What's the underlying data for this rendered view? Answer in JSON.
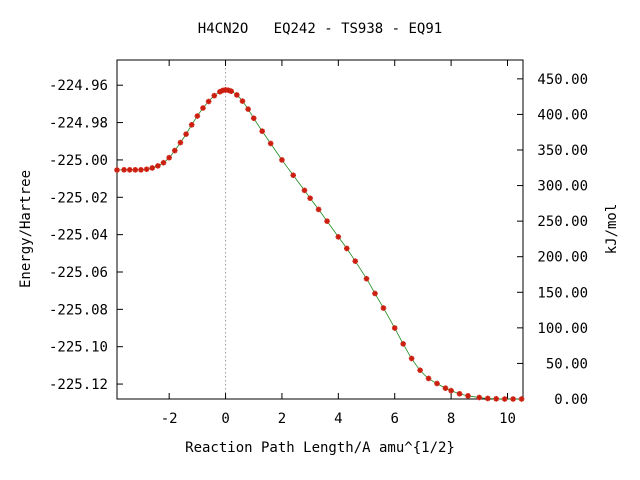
{
  "chart_data": {
    "type": "line",
    "title": "H4CN2O   EQ242 - TS938 - EQ91",
    "xlabel": "Reaction Path Length/A amu^{1/2}",
    "ylabel_left": "Energy/Hartree",
    "ylabel_right": "kJ/mol",
    "xlim": [
      -3.85,
      10.55
    ],
    "ylim_left": [
      -225.128,
      -224.9465
    ],
    "ylim_right_kjmol": [
      0,
      476.5
    ],
    "x_ticks": [
      -2,
      0,
      2,
      4,
      6,
      8,
      10
    ],
    "x_tick_labels": [
      "-2",
      "0",
      "2",
      "4",
      "6",
      "8",
      "10"
    ],
    "y_left_ticks": [
      -224.96,
      -224.98,
      -225.0,
      -225.02,
      -225.04,
      -225.06,
      -225.08,
      -225.1,
      -225.12
    ],
    "y_left_tick_labels": [
      "-224.96",
      "-224.98",
      "-225.00",
      "-225.02",
      "-225.04",
      "-225.06",
      "-225.08",
      "-225.10",
      "-225.12"
    ],
    "y_right_ticks": [
      0,
      50,
      100,
      150,
      200,
      250,
      300,
      350,
      400,
      450
    ],
    "y_right_tick_labels": [
      "0.00",
      "50.00",
      "100.00",
      "150.00",
      "200.00",
      "250.00",
      "300.00",
      "350.00",
      "400.00",
      "450.00"
    ],
    "ts_marker_x": 0,
    "series": [
      {
        "x": [
          -3.85,
          -3.6,
          -3.4,
          -3.2,
          -3.0,
          -2.8,
          -2.6,
          -2.4,
          -2.2,
          -2.0,
          -1.8,
          -1.6,
          -1.4,
          -1.2,
          -1.0,
          -0.8,
          -0.6,
          -0.4,
          -0.2,
          -0.1,
          0.0,
          0.1,
          0.2,
          0.4,
          0.6,
          0.8,
          1.0,
          1.3,
          1.6,
          2.0,
          2.4,
          2.8,
          3.0,
          3.3,
          3.6,
          4.0,
          4.3,
          4.6,
          5.0,
          5.3,
          5.6,
          6.0,
          6.3,
          6.6,
          6.9,
          7.2,
          7.5,
          7.8,
          8.0,
          8.3,
          8.6,
          9.0,
          9.3,
          9.6,
          9.9,
          10.2,
          10.5
        ],
        "y": [
          -225.0054,
          -225.0053,
          -225.0053,
          -225.0053,
          -225.0053,
          -225.005,
          -225.0043,
          -225.0032,
          -225.0015,
          -224.9988,
          -224.995,
          -224.9907,
          -224.9862,
          -224.9812,
          -224.9765,
          -224.9722,
          -224.9687,
          -224.9656,
          -224.9635,
          -224.9628,
          -224.9625,
          -224.9627,
          -224.9632,
          -224.9652,
          -224.9685,
          -224.9728,
          -224.9777,
          -224.9846,
          -224.9912,
          -225.0,
          -225.0082,
          -225.0163,
          -225.0205,
          -225.0265,
          -225.0328,
          -225.0412,
          -225.0474,
          -225.0542,
          -225.0636,
          -225.0715,
          -225.0793,
          -225.09,
          -225.0985,
          -225.1063,
          -225.1126,
          -225.117,
          -225.1197,
          -225.1222,
          -225.1235,
          -225.1252,
          -225.1263,
          -225.1272,
          -225.1277,
          -225.1279,
          -225.128,
          -225.128,
          -225.128
        ]
      }
    ]
  }
}
